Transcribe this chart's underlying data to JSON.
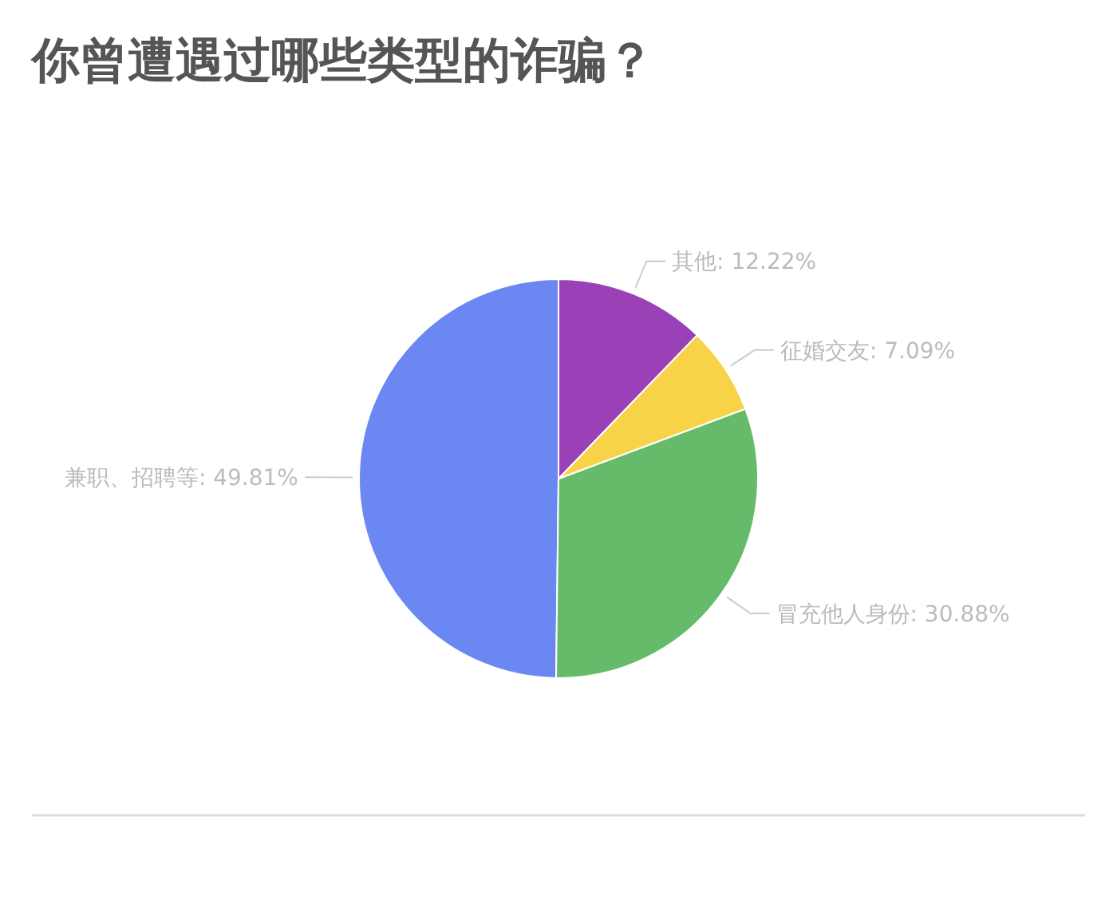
{
  "chart_data": {
    "type": "pie",
    "title": "你曾遭遇过哪些类型的诈骗？",
    "categories": [
      "兼职、招聘等",
      "冒充他人身份",
      "征婚交友",
      "其他"
    ],
    "values": [
      49.81,
      30.88,
      7.09,
      12.22
    ],
    "colors": [
      "#6b87f2",
      "#66bb6a",
      "#f8d247",
      "#9b41b8"
    ],
    "value_labels": [
      ": 49.81%",
      ": 30.88%",
      ": 7.09%",
      ": 12.22%"
    ]
  }
}
